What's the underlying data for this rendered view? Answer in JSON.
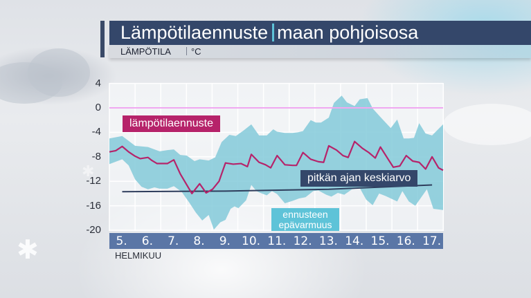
{
  "header": {
    "title": "Lämpötilaennuste",
    "region": "maan pohjoisosa",
    "subtitle_label": "LÄMPÖTILA",
    "subtitle_unit": "°C"
  },
  "legend": {
    "forecast": "lämpötilaennuste",
    "long_term_average": "pitkän ajan keskiarvo",
    "uncertainty_line1": "ennusteen",
    "uncertainty_line2": "epävarmuus"
  },
  "axes": {
    "yticks": [
      "4",
      "0",
      "-4",
      "-8",
      "-12",
      "-16",
      "-20"
    ],
    "xticks": [
      "5.",
      "6.",
      "7.",
      "8.",
      "9.",
      "10.",
      "11.",
      "12.",
      "13.",
      "14.",
      "15.",
      "16.",
      "17."
    ],
    "xunit": "HELMIKUU"
  },
  "colors": {
    "title_bar": "#34476a",
    "accent": "#5ec3d8",
    "forecast_line": "#b6236a",
    "average_line": "#2e3d5c",
    "band": "#7fc8d8",
    "zero_line": "#f0a8f0",
    "xaxis_bar": "#5a76a6"
  },
  "chart_data": {
    "type": "line",
    "title": "Lämpötilaennuste | maan pohjoisosa",
    "ylabel": "Lämpötila (°C)",
    "xlabel": "Helmikuu",
    "ylim": [
      -20,
      4
    ],
    "yticks": [
      4,
      0,
      -4,
      -8,
      -12,
      -16,
      -20
    ],
    "categories": [
      "5.",
      "6.",
      "7.",
      "8.",
      "9.",
      "10.",
      "11.",
      "12.",
      "13.",
      "14.",
      "15.",
      "16.",
      "17."
    ],
    "grid": true,
    "reference_line": {
      "name": "0 °C",
      "value": 0
    },
    "series": [
      {
        "name": "lämpötilaennuste",
        "type": "line",
        "x": [
          4.5,
          4.75,
          5.0,
          5.25,
          5.5,
          5.7,
          6.0,
          6.15,
          6.35,
          6.75,
          7.0,
          7.25,
          7.7,
          8.0,
          8.25,
          8.5,
          8.75,
          9.0,
          9.3,
          9.6,
          9.85,
          10.0,
          10.3,
          10.55,
          10.75,
          11.0,
          11.3,
          11.6,
          11.75,
          12.0,
          12.3,
          12.6,
          12.8,
          13.0,
          13.3,
          13.55,
          13.75,
          14.0,
          14.3,
          14.55,
          14.8,
          15.0,
          15.3,
          15.5,
          15.75,
          16.0,
          16.25,
          16.5,
          16.75,
          17.0,
          17.25,
          17.5
        ],
        "values": [
          -7.2,
          -7.0,
          -6.3,
          -7.2,
          -7.9,
          -8.3,
          -8.1,
          -8.6,
          -9.1,
          -9.1,
          -8.5,
          -10.8,
          -14.0,
          -12.4,
          -13.9,
          -13.3,
          -12.0,
          -9.0,
          -9.2,
          -9.1,
          -9.6,
          -7.6,
          -8.9,
          -9.3,
          -9.8,
          -7.8,
          -9.3,
          -9.4,
          -9.4,
          -7.3,
          -8.4,
          -8.8,
          -8.9,
          -6.2,
          -6.9,
          -7.8,
          -8.1,
          -5.5,
          -6.6,
          -7.3,
          -8.2,
          -6.4,
          -8.4,
          -9.7,
          -9.5,
          -7.8,
          -8.7,
          -8.9,
          -10.0,
          -8.0,
          -9.8,
          -10.2
        ]
      },
      {
        "name": "ennusteen epävarmuus (yläraja)",
        "type": "area_upper",
        "x": [
          4.5,
          4.75,
          5.0,
          5.25,
          5.5,
          6.0,
          6.45,
          6.75,
          7.0,
          7.25,
          7.5,
          7.8,
          8.0,
          8.35,
          8.6,
          8.85,
          9.15,
          9.4,
          9.7,
          10.0,
          10.3,
          10.6,
          10.85,
          11.0,
          11.3,
          11.6,
          11.8,
          12.0,
          12.3,
          12.5,
          12.7,
          13.0,
          13.2,
          13.5,
          13.7,
          14.0,
          14.2,
          14.5,
          14.7,
          15.0,
          15.2,
          15.4,
          15.65,
          15.9,
          16.1,
          16.3,
          16.5,
          16.75,
          17.0,
          17.5
        ],
        "values": [
          -5.0,
          -4.8,
          -4.6,
          -5.4,
          -6.2,
          -6.4,
          -7.1,
          -6.9,
          -6.8,
          -7.7,
          -7.8,
          -8.7,
          -8.4,
          -8.6,
          -8.1,
          -5.6,
          -4.4,
          -4.6,
          -3.7,
          -2.7,
          -4.5,
          -4.5,
          -3.5,
          -3.9,
          -4.1,
          -4.1,
          -4.0,
          -3.8,
          -2.0,
          -2.4,
          -2.4,
          -1.6,
          0.8,
          2.0,
          0.9,
          0.3,
          1.4,
          1.6,
          -0.1,
          -1.5,
          -2.4,
          -3.3,
          -1.9,
          -5.0,
          -5.0,
          -4.9,
          -2.5,
          -4.2,
          -4.5,
          -2.7
        ]
      },
      {
        "name": "ennusteen epävarmuus (alaraja)",
        "type": "area_lower",
        "x": [
          4.5,
          4.75,
          5.0,
          5.25,
          5.5,
          5.75,
          6.0,
          6.25,
          6.45,
          6.75,
          7.0,
          7.3,
          7.6,
          7.85,
          8.1,
          8.35,
          8.55,
          8.8,
          9.0,
          9.2,
          9.35,
          9.5,
          9.8,
          10.0,
          10.2,
          10.35,
          10.6,
          10.8,
          11.0,
          11.3,
          11.6,
          11.85,
          12.1,
          12.4,
          12.6,
          12.9,
          13.1,
          13.35,
          13.6,
          13.9,
          14.2,
          14.45,
          14.7,
          14.95,
          15.2,
          15.45,
          15.65,
          15.85,
          16.1,
          16.35,
          16.55,
          16.8,
          17.05,
          17.5
        ],
        "values": [
          -9.2,
          -8.8,
          -8.4,
          -9.4,
          -11.7,
          -12.9,
          -13.3,
          -13.0,
          -13.2,
          -13.2,
          -12.8,
          -13.7,
          -15.5,
          -17.1,
          -18.4,
          -17.5,
          -19.9,
          -18.7,
          -18.3,
          -16.5,
          -16.1,
          -16.4,
          -15.1,
          -12.6,
          -13.6,
          -13.9,
          -14.3,
          -13.6,
          -14.1,
          -15.6,
          -15.2,
          -14.8,
          -14.6,
          -13.6,
          -13.5,
          -14.2,
          -14.5,
          -13.9,
          -14.2,
          -13.3,
          -13.1,
          -15.0,
          -15.9,
          -14.0,
          -14.4,
          -14.9,
          -15.3,
          -13.6,
          -15.3,
          -16.0,
          -14.8,
          -13.3,
          -16.5,
          -16.7
        ]
      },
      {
        "name": "pitkän ajan keskiarvo",
        "type": "line",
        "x": [
          5.0,
          9.0,
          13.0,
          17.0
        ],
        "values": [
          -13.7,
          -13.6,
          -13.3,
          -12.6
        ]
      }
    ]
  }
}
